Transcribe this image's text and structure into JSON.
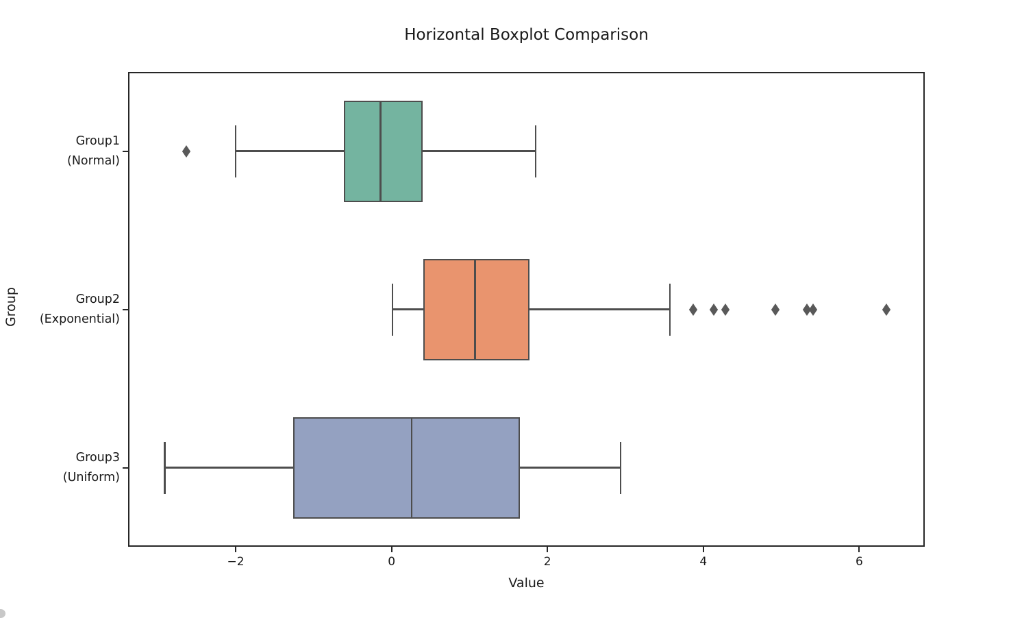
{
  "chart_data": {
    "type": "boxplot",
    "orientation": "horizontal",
    "title": "Horizontal Boxplot Comparison",
    "xlabel": "Value",
    "ylabel": "Group",
    "xlim": [
      -3.38,
      6.84
    ],
    "xticks": [
      -2,
      0,
      2,
      4,
      6
    ],
    "grid": false,
    "style": {
      "edge_color": "#4d4d4d",
      "spine_color": "#262626",
      "outlier_color": "#595959",
      "outlier_marker": "thin-diamond"
    },
    "groups": [
      {
        "label": "Group1",
        "sublabel": "(Normal)",
        "color": "#74b4a0",
        "whisker_low": -2.0,
        "q1": -0.61,
        "median": -0.14,
        "q3": 0.4,
        "whisker_high": 1.85,
        "outliers": [
          -2.63
        ]
      },
      {
        "label": "Group2",
        "sublabel": "(Exponential)",
        "color": "#e9946e",
        "whisker_low": 0.01,
        "q1": 0.41,
        "median": 1.07,
        "q3": 1.77,
        "whisker_high": 3.57,
        "outliers": [
          3.87,
          4.13,
          4.28,
          4.92,
          5.33,
          5.41,
          6.35
        ]
      },
      {
        "label": "Group3",
        "sublabel": "(Uniform)",
        "color": "#94a1c1",
        "whisker_low": -2.91,
        "q1": -1.26,
        "median": 0.26,
        "q3": 1.65,
        "whisker_high": 2.94,
        "outliers": []
      }
    ]
  }
}
